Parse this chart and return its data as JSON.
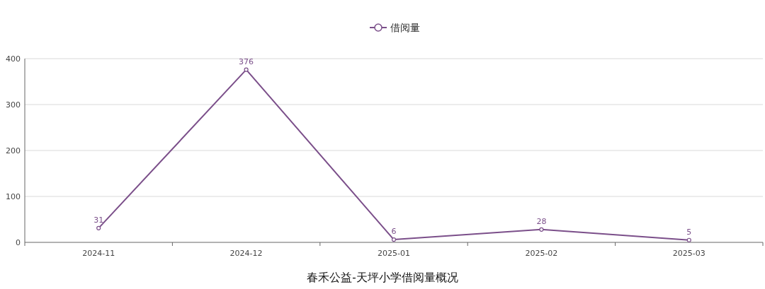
{
  "chart_data": {
    "type": "line",
    "title": "春禾公益-天坪小学借阅量概况",
    "categories": [
      "2024-11",
      "2024-12",
      "2025-01",
      "2025-02",
      "2025-03"
    ],
    "series": [
      {
        "name": "借阅量",
        "color": "#7b4f8a",
        "values": [
          31,
          376,
          6,
          28,
          5
        ]
      }
    ],
    "ylim": [
      0,
      400
    ],
    "yticks": [
      0,
      100,
      200,
      300,
      400
    ],
    "grid": "y",
    "legend": "top",
    "marker": "circle",
    "line_style": "solid",
    "data_labels": true
  }
}
